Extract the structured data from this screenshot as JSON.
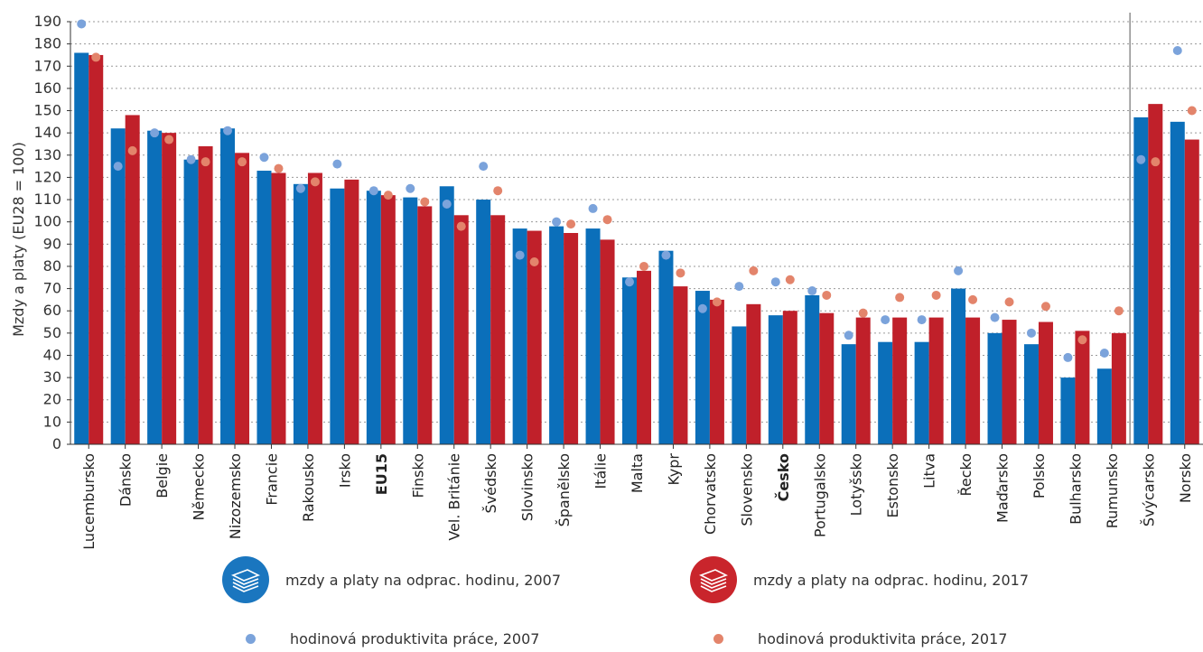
{
  "chart_data": {
    "type": "bar",
    "ylabel": "Mzdy a platy (EU28 = 100)",
    "ylim": [
      0,
      190
    ],
    "yticks": [
      0,
      10,
      20,
      30,
      40,
      50,
      60,
      70,
      80,
      90,
      100,
      110,
      120,
      130,
      140,
      150,
      160,
      170,
      180,
      190
    ],
    "grid": "horizontal dashed",
    "bold_categories": [
      "EU15",
      "Česko"
    ],
    "separator_after": "Rumunsko",
    "categories": [
      "Lucembursko",
      "Dánsko",
      "Belgie",
      "Německo",
      "Nizozemsko",
      "Francie",
      "Rakousko",
      "Irsko",
      "EU15",
      "Finsko",
      "Vel. Británie",
      "Švédsko",
      "Slovinsko",
      "Španělsko",
      "Itálie",
      "Malta",
      "Kypr",
      "Chorvatsko",
      "Slovensko",
      "Česko",
      "Portugalsko",
      "Lotyšsko",
      "Estonsko",
      "Litva",
      "Řecko",
      "Maďarsko",
      "Polsko",
      "Bulharsko",
      "Rumunsko",
      "Švýcarsko",
      "Norsko"
    ],
    "series": [
      {
        "name": "mzdy a platy na odprac. hodinu, 2007",
        "kind": "bar",
        "color": "#0b6fba",
        "values": [
          176,
          142,
          141,
          128,
          142,
          123,
          117,
          115,
          114,
          111,
          116,
          110,
          97,
          98,
          97,
          75,
          87,
          69,
          53,
          58,
          67,
          45,
          46,
          46,
          70,
          50,
          45,
          30,
          34,
          147,
          145
        ]
      },
      {
        "name": "mzdy a platy na odprac. hodinu,  2017",
        "kind": "bar",
        "color": "#c0202a",
        "values": [
          175,
          148,
          140,
          134,
          131,
          122,
          122,
          119,
          112,
          107,
          103,
          103,
          96,
          95,
          92,
          78,
          71,
          65,
          63,
          60,
          59,
          57,
          57,
          57,
          57,
          56,
          55,
          51,
          50,
          153,
          137
        ]
      },
      {
        "name": "hodinová produktivita práce, 2007",
        "kind": "point",
        "color": "#7ba3db",
        "values": [
          189,
          125,
          140,
          128,
          141,
          129,
          115,
          126,
          114,
          115,
          108,
          125,
          85,
          100,
          106,
          73,
          85,
          61,
          71,
          73,
          69,
          49,
          56,
          56,
          78,
          57,
          50,
          39,
          41,
          128,
          177
        ]
      },
      {
        "name": "hodinová produktivita práce, 2017",
        "kind": "point",
        "color": "#e3846b",
        "values": [
          174,
          132,
          137,
          127,
          127,
          124,
          118,
          null,
          112,
          109,
          98,
          114,
          82,
          99,
          101,
          80,
          77,
          64,
          78,
          74,
          67,
          59,
          66,
          67,
          65,
          64,
          62,
          47,
          60,
          127,
          150
        ]
      }
    ]
  },
  "legend": {
    "wage_2007": "mzdy a platy na odprac. hodinu, 2007",
    "wage_2017": "mzdy a platy na odprac. hodinu,  2017",
    "prod_2007": "hodinová produktivita práce, 2007",
    "prod_2017": "hodinová produktivita práce, 2017",
    "badge_2007_color": "#1a76bf",
    "badge_2017_color": "#c9252c",
    "icon": "money-stack-icon"
  }
}
